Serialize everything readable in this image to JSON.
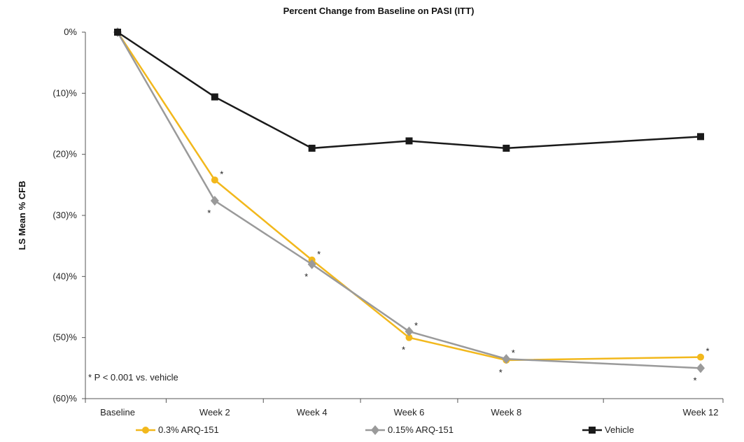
{
  "chart_data": {
    "type": "line",
    "title": "Percent Change from Baseline on PASI (ITT)",
    "ylabel": "LS Mean % CFB",
    "xlabel": "",
    "categories": [
      "Baseline",
      "Week 2",
      "Week 4",
      "Week 6",
      "Week 8",
      "Week 12"
    ],
    "x_weeks": [
      0,
      2,
      4,
      6,
      8,
      12
    ],
    "ylim": [
      -60,
      0
    ],
    "y_ticks": [
      0,
      -10,
      -20,
      -30,
      -40,
      -50,
      -60
    ],
    "y_tick_labels": [
      "0%",
      "(10)%",
      "(20)%",
      "(30)%",
      "(40)%",
      "(50)%",
      "(60)%"
    ],
    "grid": false,
    "legend_position": "bottom",
    "series": [
      {
        "name": "0.3% ARQ-151",
        "color": "#f2b81c",
        "marker": "circle",
        "values": [
          0,
          -24.2,
          -37.3,
          -50.0,
          -53.7,
          -53.2
        ]
      },
      {
        "name": "0.15% ARQ-151",
        "color": "#9a9a9a",
        "marker": "diamond",
        "values": [
          0,
          -27.6,
          -38.0,
          -49.0,
          -53.5,
          -55.0
        ]
      },
      {
        "name": "Vehicle",
        "color": "#1a1a1a",
        "marker": "square",
        "values": [
          0,
          -10.6,
          -19.0,
          -17.8,
          -19.0,
          -17.1
        ]
      }
    ],
    "significance_marker": "*",
    "significance_note": "* P < 0.001 vs. vehicle",
    "significance_points": [
      1,
      2,
      3,
      4,
      5
    ]
  }
}
